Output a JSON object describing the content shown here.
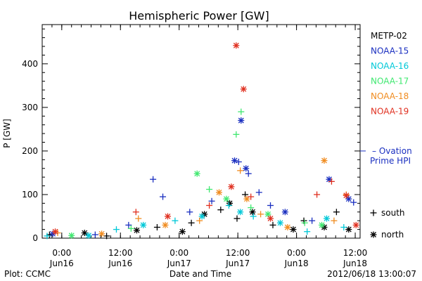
{
  "chart_data": {
    "type": "scatter",
    "title": "Hemispheric Power [GW]",
    "ylabel": "P [GW]",
    "xlabel": "Date and Time",
    "ylim": [
      0,
      490
    ],
    "xlim": [
      "2012-06-15 20:00",
      "2012-06-18 13:00"
    ],
    "y_ticks": [
      "0",
      "100",
      "200",
      "300",
      "400"
    ],
    "x_ticks": [
      {
        "time": "0:00",
        "date": "Jun16",
        "at": "2012-06-16 00:00"
      },
      {
        "time": "12:00",
        "date": "Jun16",
        "at": "2012-06-16 12:00"
      },
      {
        "time": "0:00",
        "date": "Jun17",
        "at": "2012-06-17 00:00"
      },
      {
        "time": "12:00",
        "date": "Jun17",
        "at": "2012-06-17 12:00"
      },
      {
        "time": "0:00",
        "date": "Jun18",
        "at": "2012-06-18 00:00"
      },
      {
        "time": "12:00",
        "date": "Jun18",
        "at": "2012-06-18 12:00"
      }
    ],
    "series": [
      {
        "name": "METP-02",
        "color": "#000000",
        "points": [
          {
            "t": "2012-06-15 21:30",
            "v": 8,
            "m": "+"
          },
          {
            "t": "2012-06-16 04:40",
            "v": 12,
            "m": "*"
          },
          {
            "t": "2012-06-16 09:10",
            "v": 5,
            "m": "+"
          },
          {
            "t": "2012-06-16 15:20",
            "v": 18,
            "m": "*"
          },
          {
            "t": "2012-06-16 19:30",
            "v": 25,
            "m": "+"
          },
          {
            "t": "2012-06-17 00:40",
            "v": 15,
            "m": "*"
          },
          {
            "t": "2012-06-17 02:30",
            "v": 35,
            "m": "+"
          },
          {
            "t": "2012-06-17 05:10",
            "v": 55,
            "m": "*"
          },
          {
            "t": "2012-06-17 08:30",
            "v": 65,
            "m": "+"
          },
          {
            "t": "2012-06-17 10:20",
            "v": 80,
            "m": "*"
          },
          {
            "t": "2012-06-17 11:50",
            "v": 45,
            "m": "+"
          },
          {
            "t": "2012-06-17 13:30",
            "v": 100,
            "m": "+"
          },
          {
            "t": "2012-06-17 15:00",
            "v": 60,
            "m": "*"
          },
          {
            "t": "2012-06-17 19:10",
            "v": 30,
            "m": "+"
          },
          {
            "t": "2012-06-17 23:20",
            "v": 20,
            "m": "*"
          },
          {
            "t": "2012-06-18 01:30",
            "v": 40,
            "m": "+"
          },
          {
            "t": "2012-06-18 05:40",
            "v": 25,
            "m": "*"
          },
          {
            "t": "2012-06-18 08:10",
            "v": 60,
            "m": "+"
          },
          {
            "t": "2012-06-18 10:40",
            "v": 20,
            "m": "*"
          }
        ]
      },
      {
        "name": "NOAA-15",
        "color": "#1a2fc0",
        "points": [
          {
            "t": "2012-06-15 22:10",
            "v": 10,
            "m": "*"
          },
          {
            "t": "2012-06-16 06:50",
            "v": 8,
            "m": "+"
          },
          {
            "t": "2012-06-16 13:40",
            "v": 30,
            "m": "+"
          },
          {
            "t": "2012-06-16 18:40",
            "v": 135,
            "m": "+"
          },
          {
            "t": "2012-06-16 20:40",
            "v": 95,
            "m": "+"
          },
          {
            "t": "2012-06-17 02:10",
            "v": 60,
            "m": "+"
          },
          {
            "t": "2012-06-17 06:40",
            "v": 85,
            "m": "+"
          },
          {
            "t": "2012-06-17 11:20",
            "v": 178,
            "m": "*"
          },
          {
            "t": "2012-06-17 12:10",
            "v": 175,
            "m": "+"
          },
          {
            "t": "2012-06-17 12:40",
            "v": 270,
            "m": "*"
          },
          {
            "t": "2012-06-17 13:40",
            "v": 160,
            "m": "*"
          },
          {
            "t": "2012-06-17 14:10",
            "v": 148,
            "m": "+"
          },
          {
            "t": "2012-06-17 16:20",
            "v": 105,
            "m": "+"
          },
          {
            "t": "2012-06-17 18:40",
            "v": 75,
            "m": "+"
          },
          {
            "t": "2012-06-17 21:40",
            "v": 60,
            "m": "*"
          },
          {
            "t": "2012-06-18 03:10",
            "v": 40,
            "m": "+"
          },
          {
            "t": "2012-06-18 06:40",
            "v": 135,
            "m": "*"
          },
          {
            "t": "2012-06-18 10:40",
            "v": 90,
            "m": "*"
          },
          {
            "t": "2012-06-18 11:40",
            "v": 82,
            "m": "+"
          }
        ]
      },
      {
        "name": "NOAA-16",
        "color": "#00c8d8",
        "points": [
          {
            "t": "2012-06-15 21:00",
            "v": 5,
            "m": "+"
          },
          {
            "t": "2012-06-16 05:30",
            "v": 6,
            "m": "*"
          },
          {
            "t": "2012-06-16 11:10",
            "v": 20,
            "m": "+"
          },
          {
            "t": "2012-06-16 16:40",
            "v": 30,
            "m": "*"
          },
          {
            "t": "2012-06-16 23:10",
            "v": 40,
            "m": "+"
          },
          {
            "t": "2012-06-17 04:40",
            "v": 50,
            "m": "*"
          },
          {
            "t": "2012-06-17 10:10",
            "v": 75,
            "m": "+"
          },
          {
            "t": "2012-06-17 12:30",
            "v": 60,
            "m": "*"
          },
          {
            "t": "2012-06-17 15:10",
            "v": 50,
            "m": "+"
          },
          {
            "t": "2012-06-17 20:40",
            "v": 35,
            "m": "*"
          },
          {
            "t": "2012-06-18 02:10",
            "v": 15,
            "m": "+"
          },
          {
            "t": "2012-06-18 06:10",
            "v": 45,
            "m": "*"
          },
          {
            "t": "2012-06-18 09:40",
            "v": 25,
            "m": "+"
          }
        ]
      },
      {
        "name": "NOAA-17",
        "color": "#40e870",
        "points": [
          {
            "t": "2012-06-16 02:00",
            "v": 6,
            "m": "*"
          },
          {
            "t": "2012-06-16 14:10",
            "v": 22,
            "m": "+"
          },
          {
            "t": "2012-06-17 03:40",
            "v": 148,
            "m": "*"
          },
          {
            "t": "2012-06-17 06:10",
            "v": 112,
            "m": "+"
          },
          {
            "t": "2012-06-17 09:40",
            "v": 90,
            "m": "*"
          },
          {
            "t": "2012-06-17 11:40",
            "v": 238,
            "m": "+"
          },
          {
            "t": "2012-06-17 12:40",
            "v": 290,
            "m": "+"
          },
          {
            "t": "2012-06-17 14:40",
            "v": 70,
            "m": "+"
          },
          {
            "t": "2012-06-17 18:10",
            "v": 55,
            "m": "*"
          },
          {
            "t": "2012-06-18 01:40",
            "v": 35,
            "m": "+"
          },
          {
            "t": "2012-06-18 05:10",
            "v": 30,
            "m": "*"
          }
        ]
      },
      {
        "name": "NOAA-18",
        "color": "#f08c20",
        "points": [
          {
            "t": "2012-06-15 23:10",
            "v": 12,
            "m": "+"
          },
          {
            "t": "2012-06-16 08:10",
            "v": 10,
            "m": "*"
          },
          {
            "t": "2012-06-16 15:40",
            "v": 45,
            "m": "+"
          },
          {
            "t": "2012-06-16 21:10",
            "v": 30,
            "m": "*"
          },
          {
            "t": "2012-06-17 04:10",
            "v": 40,
            "m": "+"
          },
          {
            "t": "2012-06-17 08:10",
            "v": 105,
            "m": "*"
          },
          {
            "t": "2012-06-17 12:30",
            "v": 155,
            "m": "+"
          },
          {
            "t": "2012-06-17 13:50",
            "v": 90,
            "m": "*"
          },
          {
            "t": "2012-06-17 16:40",
            "v": 55,
            "m": "+"
          },
          {
            "t": "2012-06-17 22:10",
            "v": 25,
            "m": "*"
          },
          {
            "t": "2012-06-18 05:40",
            "v": 178,
            "m": "*"
          },
          {
            "t": "2012-06-18 07:40",
            "v": 40,
            "m": "+"
          },
          {
            "t": "2012-06-18 10:10",
            "v": 100,
            "m": "+"
          }
        ]
      },
      {
        "name": "NOAA-19",
        "color": "#e03020",
        "points": [
          {
            "t": "2012-06-15 22:40",
            "v": 15,
            "m": "*"
          },
          {
            "t": "2012-06-16 15:10",
            "v": 60,
            "m": "+"
          },
          {
            "t": "2012-06-16 21:40",
            "v": 50,
            "m": "*"
          },
          {
            "t": "2012-06-17 06:10",
            "v": 75,
            "m": "+"
          },
          {
            "t": "2012-06-17 10:40",
            "v": 118,
            "m": "*"
          },
          {
            "t": "2012-06-17 11:40",
            "v": 442,
            "m": "*"
          },
          {
            "t": "2012-06-17 13:10",
            "v": 342,
            "m": "*"
          },
          {
            "t": "2012-06-17 14:40",
            "v": 95,
            "m": "+"
          },
          {
            "t": "2012-06-17 18:40",
            "v": 45,
            "m": "*"
          },
          {
            "t": "2012-06-18 04:10",
            "v": 100,
            "m": "+"
          },
          {
            "t": "2012-06-18 07:10",
            "v": 130,
            "m": "+"
          },
          {
            "t": "2012-06-18 10:10",
            "v": 98,
            "m": "*"
          },
          {
            "t": "2012-06-18 12:10",
            "v": 30,
            "m": "*"
          }
        ]
      }
    ],
    "ovation_marker": {
      "value": 200,
      "label_line1": "– Ovation",
      "label_line2": "Prime HPI",
      "color": "#1a2fc0"
    },
    "symbol_legend": [
      {
        "symbol": "+",
        "label": "south"
      },
      {
        "symbol": "*",
        "label": "north"
      }
    ],
    "grid": false,
    "legend_placement": "right"
  },
  "footer": {
    "source": "Plot: CCMC",
    "timestamp": "2012/06/18 13:00:07"
  }
}
